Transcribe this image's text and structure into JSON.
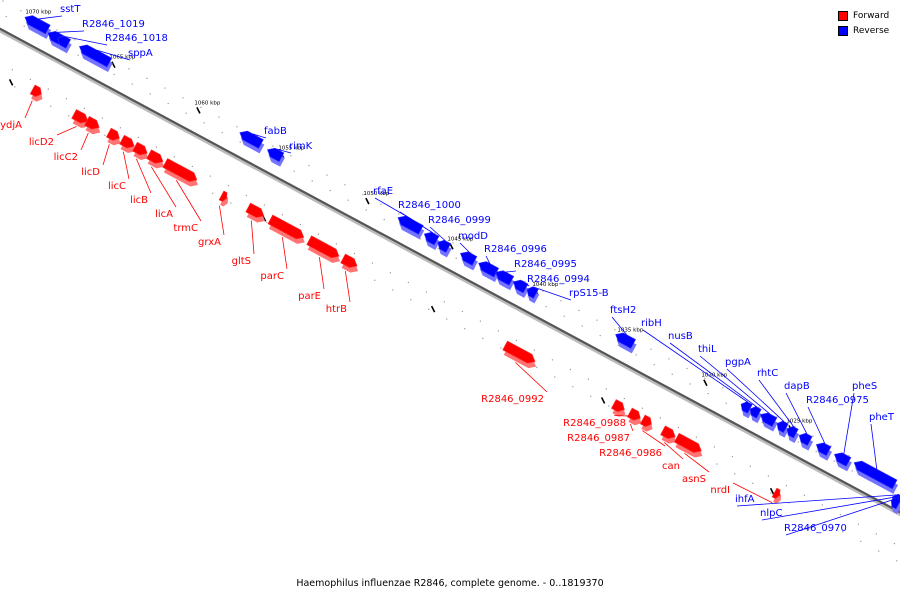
{
  "caption": "Haemophilus influenzae R2846, complete genome. - 0..1819370",
  "legend": [
    {
      "label": "Forward",
      "color": "#ff0000"
    },
    {
      "label": "Reverse",
      "color": "#0000ff"
    }
  ],
  "colors": {
    "forward": "#ff0000",
    "reverse": "#0000ff",
    "axis": "#555555"
  },
  "ticks": [
    {
      "label": "1070 kbp",
      "kbp": 1070
    },
    {
      "label": "1065 kbp",
      "kbp": 1065
    },
    {
      "label": "1060 kbp",
      "kbp": 1060
    },
    {
      "label": "1055 kbp",
      "kbp": 1055
    },
    {
      "label": "1050 kbp",
      "kbp": 1050
    },
    {
      "label": "1045 kbp",
      "kbp": 1045
    },
    {
      "label": "1040 kbp",
      "kbp": 1040
    },
    {
      "label": "1035 kbp",
      "kbp": 1035
    },
    {
      "label": "1030 kbp",
      "kbp": 1030
    },
    {
      "label": "1025 kbp",
      "kbp": 1025
    }
  ],
  "genes": [
    {
      "label": "sstT",
      "strand": "reverse"
    },
    {
      "label": "R2846_1019",
      "strand": "reverse"
    },
    {
      "label": "R2846_1018",
      "strand": "reverse"
    },
    {
      "label": "sppA",
      "strand": "reverse"
    },
    {
      "label": "ydjA",
      "strand": "forward"
    },
    {
      "label": "licD2",
      "strand": "forward"
    },
    {
      "label": "licC2",
      "strand": "forward"
    },
    {
      "label": "licD",
      "strand": "forward"
    },
    {
      "label": "licC",
      "strand": "forward"
    },
    {
      "label": "licB",
      "strand": "forward"
    },
    {
      "label": "licA",
      "strand": "forward"
    },
    {
      "label": "trmC",
      "strand": "forward"
    },
    {
      "label": "grxA",
      "strand": "forward"
    },
    {
      "label": "fabB",
      "strand": "reverse"
    },
    {
      "label": "rimK",
      "strand": "reverse"
    },
    {
      "label": "gltS",
      "strand": "forward"
    },
    {
      "label": "parC",
      "strand": "forward"
    },
    {
      "label": "parE",
      "strand": "forward"
    },
    {
      "label": "htrB",
      "strand": "forward"
    },
    {
      "label": "rfaE",
      "strand": "reverse"
    },
    {
      "label": "R2846_1000",
      "strand": "reverse"
    },
    {
      "label": "R2846_0999",
      "strand": "reverse"
    },
    {
      "label": "modD",
      "strand": "reverse"
    },
    {
      "label": "R2846_0996",
      "strand": "reverse"
    },
    {
      "label": "R2846_0995",
      "strand": "reverse"
    },
    {
      "label": "R2846_0994",
      "strand": "reverse"
    },
    {
      "label": "rpS15-B",
      "strand": "reverse"
    },
    {
      "label": "ftsH2",
      "strand": "reverse"
    },
    {
      "label": "R2846_0992",
      "strand": "forward"
    },
    {
      "label": "ribH",
      "strand": "reverse"
    },
    {
      "label": "nusB",
      "strand": "reverse"
    },
    {
      "label": "thiL",
      "strand": "reverse"
    },
    {
      "label": "pgpA",
      "strand": "reverse"
    },
    {
      "label": "rhtC",
      "strand": "reverse"
    },
    {
      "label": "dapB",
      "strand": "reverse"
    },
    {
      "label": "R2846_0975",
      "strand": "reverse"
    },
    {
      "label": "pheS",
      "strand": "reverse"
    },
    {
      "label": "pheT",
      "strand": "reverse"
    },
    {
      "label": "R2846_0988",
      "strand": "forward"
    },
    {
      "label": "R2846_0987",
      "strand": "forward"
    },
    {
      "label": "R2846_0986",
      "strand": "forward"
    },
    {
      "label": "can",
      "strand": "forward"
    },
    {
      "label": "asnS",
      "strand": "forward"
    },
    {
      "label": "nrdI",
      "strand": "forward"
    },
    {
      "label": "ihfA",
      "strand": "reverse"
    },
    {
      "label": "nlpC",
      "strand": "reverse"
    },
    {
      "label": "R2846_0970",
      "strand": "reverse"
    }
  ]
}
